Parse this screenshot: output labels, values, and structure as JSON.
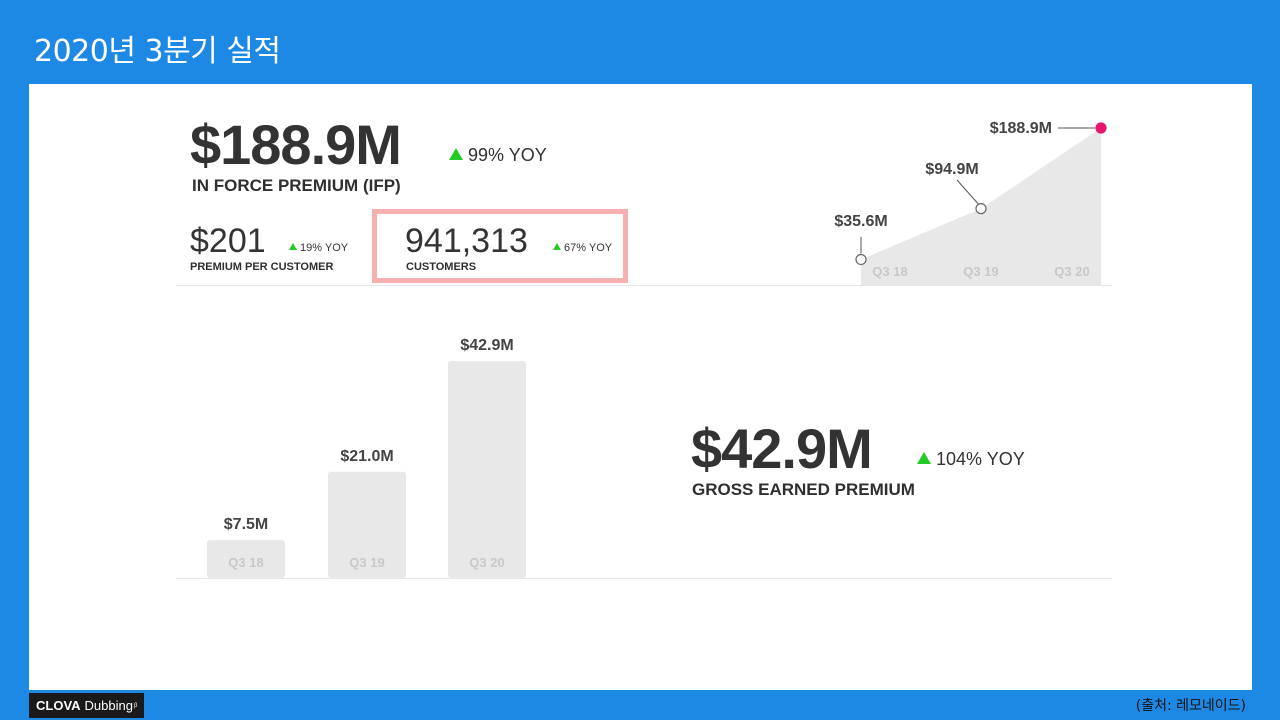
{
  "slide": {
    "title": "2020년 3분기 실적",
    "source": "(출처: 레모네이드)"
  },
  "footer": {
    "brand_bold": "CLOVA",
    "brand_rest": "Dubbing",
    "brand_mark": "β"
  },
  "ifp": {
    "value": "$188.9M",
    "yoy": "99% YOY",
    "label": "IN FORCE PREMIUM (IFP)"
  },
  "premium_per_customer": {
    "value": "$201",
    "yoy": "19% YOY",
    "label": "PREMIUM PER CUSTOMER"
  },
  "customers": {
    "value": "941,313",
    "yoy": "67% YOY",
    "label": "CUSTOMERS"
  },
  "gep": {
    "value": "$42.9M",
    "yoy": "104% YOY",
    "label": "GROSS EARNED PREMIUM"
  },
  "colors": {
    "up_arrow": "#22cc22",
    "highlight": "#f6b0b0",
    "latest_point": "#e8156f",
    "chart_fill": "#e8e8e8",
    "tick_text": "#c8c8c8"
  },
  "chart_data": [
    {
      "type": "area",
      "categories": [
        "Q3 18",
        "Q3 19",
        "Q3 20"
      ],
      "values": [
        35.6,
        94.9,
        188.9
      ],
      "data_labels": [
        "$35.6M",
        "$94.9M",
        "$188.9M"
      ],
      "title": "",
      "xlabel": "",
      "ylabel": "",
      "unit": "$M"
    },
    {
      "type": "bar",
      "categories": [
        "Q3 18",
        "Q3 19",
        "Q3 20"
      ],
      "values": [
        7.5,
        21.0,
        42.9
      ],
      "data_labels": [
        "$7.5M",
        "$21.0M",
        "$42.9M"
      ],
      "title": "",
      "xlabel": "",
      "ylabel": "",
      "unit": "$M"
    }
  ]
}
